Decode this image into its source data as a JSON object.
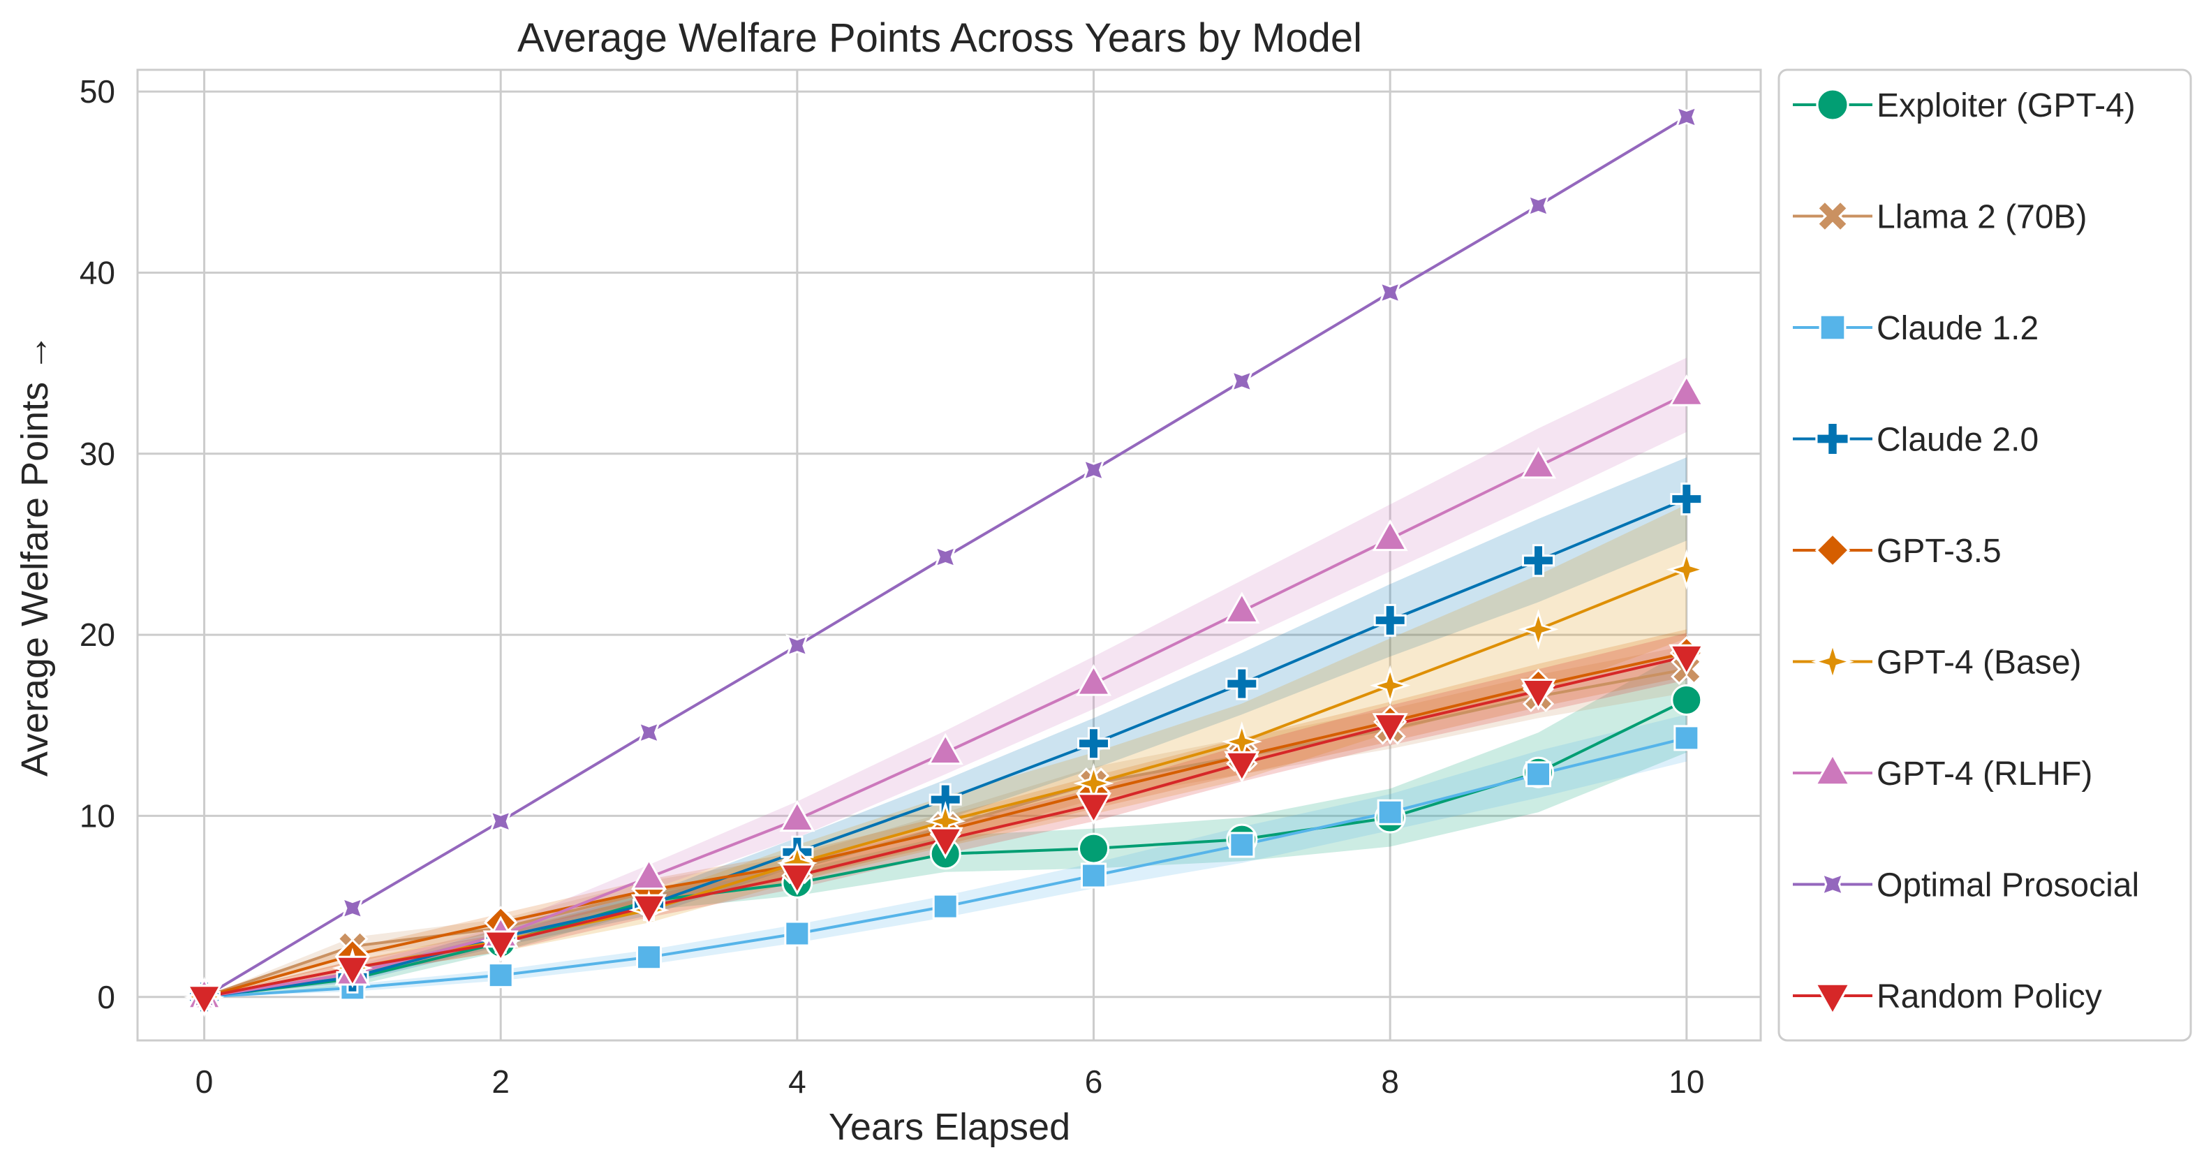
{
  "chart_data": {
    "type": "line",
    "title": "Average Welfare Points Across Years by Model",
    "xlabel": "Years Elapsed",
    "ylabel": "Average Welfare Points →",
    "xlim": [
      -0.45,
      10.5
    ],
    "ylim": [
      -2.4,
      51.2
    ],
    "xticks": [
      0,
      2,
      4,
      6,
      8,
      10
    ],
    "yticks": [
      0,
      10,
      20,
      30,
      40,
      50
    ],
    "grid": true,
    "legend_position": "outside-right",
    "x": [
      0,
      1,
      2,
      3,
      4,
      5,
      6,
      7,
      8,
      9,
      10
    ],
    "series": [
      {
        "name": "Exploiter (GPT-4)",
        "color": "#029e73",
        "marker": "circle",
        "values": [
          0,
          1.0,
          3.0,
          5.3,
          6.3,
          7.9,
          8.2,
          8.7,
          9.9,
          12.4,
          16.4
        ],
        "band": [
          [
            0,
            0
          ],
          [
            0.6,
            1.4
          ],
          [
            2.5,
            3.5
          ],
          [
            4.8,
            5.8
          ],
          [
            5.6,
            7.0
          ],
          [
            6.9,
            8.9
          ],
          [
            7.1,
            9.3
          ],
          [
            7.5,
            9.9
          ],
          [
            8.3,
            11.5
          ],
          [
            10.2,
            14.6
          ],
          [
            13.5,
            19.2
          ]
        ]
      },
      {
        "name": "Llama 2 (70B)",
        "color": "#ca9161",
        "marker": "x",
        "values": [
          0,
          2.8,
          3.8,
          5.8,
          7.1,
          9.4,
          11.8,
          13.3,
          14.8,
          16.6,
          18.1
        ],
        "band": [
          [
            0,
            0
          ],
          [
            2.3,
            3.3
          ],
          [
            3.3,
            4.3
          ],
          [
            5.2,
            6.4
          ],
          [
            6.4,
            7.8
          ],
          [
            8.6,
            10.2
          ],
          [
            10.9,
            12.7
          ],
          [
            12.3,
            14.3
          ],
          [
            13.7,
            15.9
          ],
          [
            15.4,
            17.8
          ],
          [
            16.8,
            19.4
          ]
        ]
      },
      {
        "name": "Claude 1.2",
        "color": "#56b4e9",
        "marker": "square",
        "values": [
          0,
          0.5,
          1.2,
          2.2,
          3.5,
          5.0,
          6.7,
          8.4,
          10.2,
          12.3,
          14.3
        ],
        "band": [
          [
            0,
            0
          ],
          [
            0.3,
            0.7
          ],
          [
            0.9,
            1.5
          ],
          [
            1.8,
            2.6
          ],
          [
            3.0,
            4.0
          ],
          [
            4.4,
            5.6
          ],
          [
            6.0,
            7.4
          ],
          [
            7.4,
            9.4
          ],
          [
            9.2,
            11.2
          ],
          [
            11.0,
            13.6
          ],
          [
            13.0,
            15.6
          ]
        ]
      },
      {
        "name": "Claude 2.0",
        "color": "#0173b2",
        "marker": "plus",
        "values": [
          0,
          1.1,
          3.3,
          5.1,
          8.0,
          10.9,
          14.0,
          17.3,
          20.8,
          24.1,
          27.5
        ],
        "band": [
          [
            0,
            0
          ],
          [
            0.8,
            1.4
          ],
          [
            2.8,
            3.8
          ],
          [
            4.5,
            5.7
          ],
          [
            7.2,
            8.8
          ],
          [
            9.8,
            12.0
          ],
          [
            12.6,
            15.4
          ],
          [
            15.6,
            19.0
          ],
          [
            18.8,
            22.8
          ],
          [
            21.8,
            26.4
          ],
          [
            25.2,
            29.8
          ]
        ]
      },
      {
        "name": "GPT-3.5",
        "color": "#d55e00",
        "marker": "diamond",
        "values": [
          0,
          2.3,
          4.1,
          5.9,
          7.3,
          9.2,
          11.3,
          13.3,
          15.2,
          17.2,
          19.0
        ],
        "band": [
          [
            0,
            0
          ],
          [
            1.9,
            2.7
          ],
          [
            3.6,
            4.6
          ],
          [
            5.3,
            6.5
          ],
          [
            6.6,
            8.0
          ],
          [
            8.4,
            10.0
          ],
          [
            10.4,
            12.2
          ],
          [
            12.3,
            14.3
          ],
          [
            14.1,
            16.3
          ],
          [
            16.0,
            18.4
          ],
          [
            17.7,
            20.3
          ]
        ]
      },
      {
        "name": "GPT-4 (Base)",
        "color": "#de8f05",
        "marker": "star4",
        "values": [
          0,
          1.6,
          3.1,
          4.8,
          7.4,
          9.7,
          11.8,
          14.1,
          17.2,
          20.3,
          23.6
        ],
        "band": [
          [
            0,
            0
          ],
          [
            1.2,
            2.0
          ],
          [
            2.5,
            3.7
          ],
          [
            4.1,
            5.5
          ],
          [
            6.4,
            8.4
          ],
          [
            8.3,
            11.1
          ],
          [
            10.1,
            13.5
          ],
          [
            12.0,
            16.2
          ],
          [
            14.6,
            19.8
          ],
          [
            16.8,
            23.3
          ],
          [
            19.8,
            27.2
          ]
        ]
      },
      {
        "name": "GPT-4 (RLHF)",
        "color": "#cc78bc",
        "marker": "triangle-up",
        "values": [
          0,
          1.3,
          3.4,
          6.6,
          9.8,
          13.5,
          17.3,
          21.3,
          25.3,
          29.3,
          33.3
        ],
        "band": [
          [
            0,
            0
          ],
          [
            0.9,
            1.7
          ],
          [
            2.9,
            3.9
          ],
          [
            5.9,
            7.3
          ],
          [
            8.8,
            10.8
          ],
          [
            12.3,
            14.7
          ],
          [
            15.9,
            18.8
          ],
          [
            19.7,
            23.0
          ],
          [
            23.5,
            27.2
          ],
          [
            27.3,
            31.4
          ],
          [
            31.2,
            35.3
          ]
        ]
      },
      {
        "name": "Optimal Prosocial",
        "color": "#9467bd",
        "marker": "star4-diag",
        "values": [
          0,
          4.9,
          9.7,
          14.6,
          19.4,
          24.3,
          29.1,
          34.0,
          38.9,
          43.7,
          48.6
        ],
        "band": null
      },
      {
        "name": "Random Policy",
        "color": "#d62728",
        "marker": "triangle-down",
        "values": [
          0,
          1.6,
          3.0,
          5.0,
          6.7,
          8.7,
          10.6,
          12.9,
          15.0,
          16.9,
          18.8
        ],
        "band": [
          [
            0,
            0
          ],
          [
            1.2,
            2.0
          ],
          [
            2.5,
            3.5
          ],
          [
            4.4,
            5.6
          ],
          [
            6.0,
            7.4
          ],
          [
            7.9,
            9.5
          ],
          [
            9.7,
            11.5
          ],
          [
            11.9,
            13.9
          ],
          [
            13.9,
            16.1
          ],
          [
            15.7,
            18.1
          ],
          [
            17.5,
            20.1
          ]
        ]
      }
    ]
  }
}
